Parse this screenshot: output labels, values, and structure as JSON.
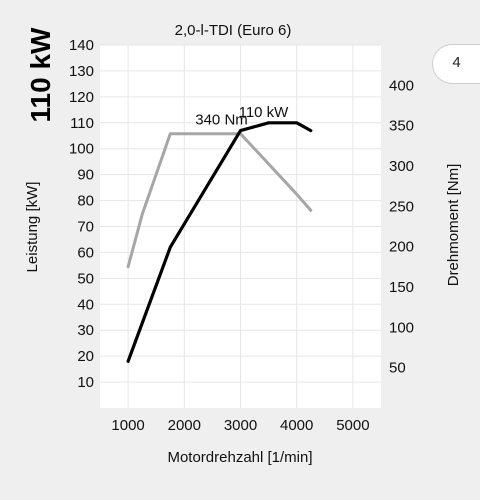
{
  "page_number": "4",
  "colors": {
    "power": "#000000",
    "torque": "#a6a6a6",
    "plot_bg": "#ffffff",
    "grid": "#e6e6e6"
  },
  "chart_data": {
    "type": "line",
    "title": "2,0-l-TDI (Euro 6)",
    "headline": "110 kW",
    "xlabel": "Motordrehzahl [1/min]",
    "ylabel_left": "Leistung [kW]",
    "ylabel_right": "Drehmoment [Nm]",
    "xlim": [
      500,
      5500
    ],
    "ylim_left": [
      0,
      140
    ],
    "ylim_right": [
      0,
      450
    ],
    "x_ticks": [
      1000,
      2000,
      3000,
      4000,
      5000
    ],
    "y_ticks_left": [
      10,
      20,
      30,
      40,
      50,
      60,
      70,
      80,
      90,
      100,
      110,
      120,
      130,
      140
    ],
    "y_ticks_right": [
      50,
      100,
      150,
      200,
      250,
      300,
      350,
      400
    ],
    "grid": true,
    "series": [
      {
        "name": "110 kW",
        "axis": "left",
        "color": "#000000",
        "points": [
          [
            1000,
            18
          ],
          [
            1750,
            62
          ],
          [
            3000,
            107
          ],
          [
            3500,
            110
          ],
          [
            4000,
            110
          ],
          [
            4250,
            107
          ]
        ]
      },
      {
        "name": "340 Nm",
        "axis": "right",
        "color": "#a6a6a6",
        "points": [
          [
            1000,
            175
          ],
          [
            1250,
            240
          ],
          [
            1750,
            340
          ],
          [
            3000,
            340
          ],
          [
            4000,
            265
          ],
          [
            4250,
            245
          ]
        ]
      }
    ]
  }
}
